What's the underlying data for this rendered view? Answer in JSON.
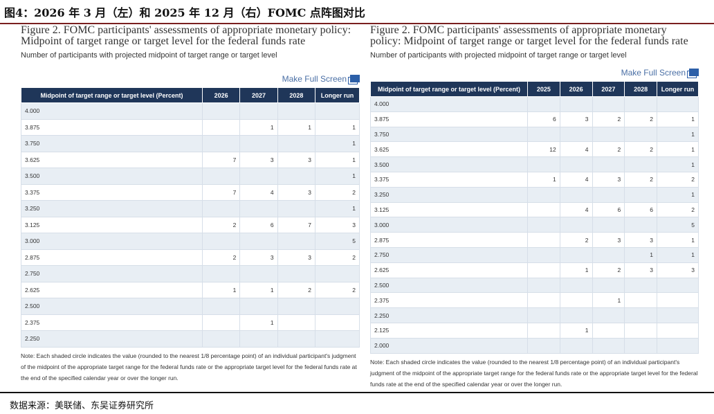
{
  "heading": "图4：2026 年 3 月（左）和 2025 年 12 月（右）FOMC 点阵图对比",
  "source": "数据来源：美联储、东吴证券研究所",
  "left": {
    "title": "Figure 2. FOMC participants' assessments of appropriate monetary policy: Midpoint of target range or target level for the federal funds rate",
    "subtitle": "Number of participants with projected midpoint of target range or target level",
    "full_screen": "Make Full Screen",
    "headers": [
      "Midpoint of target range or target level (Percent)",
      "2026",
      "2027",
      "2028",
      "Longer run"
    ],
    "rows": [
      [
        "4.000",
        "",
        "",
        "",
        ""
      ],
      [
        "3.875",
        "",
        "1",
        "1",
        "1"
      ],
      [
        "3.750",
        "",
        "",
        "",
        "1"
      ],
      [
        "3.625",
        "7",
        "3",
        "3",
        "1"
      ],
      [
        "3.500",
        "",
        "",
        "",
        "1"
      ],
      [
        "3.375",
        "7",
        "4",
        "3",
        "2"
      ],
      [
        "3.250",
        "",
        "",
        "",
        "1"
      ],
      [
        "3.125",
        "2",
        "6",
        "7",
        "3"
      ],
      [
        "3.000",
        "",
        "",
        "",
        "5"
      ],
      [
        "2.875",
        "2",
        "3",
        "3",
        "2"
      ],
      [
        "2.750",
        "",
        "",
        "",
        ""
      ],
      [
        "2.625",
        "1",
        "1",
        "2",
        "2"
      ],
      [
        "2.500",
        "",
        "",
        "",
        ""
      ],
      [
        "2.375",
        "",
        "1",
        "",
        ""
      ],
      [
        "2.250",
        "",
        "",
        "",
        ""
      ]
    ],
    "note": "Note: Each shaded circle indicates the value (rounded to the nearest 1/8 percentage point) of an individual participant's judgment of the midpoint of the appropriate target range for the federal funds rate or the appropriate target level for the federal funds rate at the end of the specified calendar year or over the longer run."
  },
  "right": {
    "title": "Figure 2. FOMC participants' assessments of appropriate monetary policy: Midpoint of target range or target level for the federal funds rate",
    "subtitle": "Number of participants with projected midpoint of target range or target level",
    "full_screen": "Make Full Screen",
    "headers": [
      "Midpoint of target range or target level (Percent)",
      "2025",
      "2026",
      "2027",
      "2028",
      "Longer run"
    ],
    "rows": [
      [
        "4.000",
        "",
        "",
        "",
        "",
        ""
      ],
      [
        "3.875",
        "6",
        "3",
        "2",
        "2",
        "1"
      ],
      [
        "3.750",
        "",
        "",
        "",
        "",
        "1"
      ],
      [
        "3.625",
        "12",
        "4",
        "2",
        "2",
        "1"
      ],
      [
        "3.500",
        "",
        "",
        "",
        "",
        "1"
      ],
      [
        "3.375",
        "1",
        "4",
        "3",
        "2",
        "2"
      ],
      [
        "3.250",
        "",
        "",
        "",
        "",
        "1"
      ],
      [
        "3.125",
        "",
        "4",
        "6",
        "6",
        "2"
      ],
      [
        "3.000",
        "",
        "",
        "",
        "",
        "5"
      ],
      [
        "2.875",
        "",
        "2",
        "3",
        "3",
        "1"
      ],
      [
        "2.750",
        "",
        "",
        "",
        "1",
        "1"
      ],
      [
        "2.625",
        "",
        "1",
        "2",
        "3",
        "3"
      ],
      [
        "2.500",
        "",
        "",
        "",
        "",
        ""
      ],
      [
        "2.375",
        "",
        "",
        "1",
        "",
        ""
      ],
      [
        "2.250",
        "",
        "",
        "",
        "",
        ""
      ],
      [
        "2.125",
        "",
        "1",
        "",
        "",
        ""
      ],
      [
        "2.000",
        "",
        "",
        "",
        "",
        ""
      ]
    ],
    "note": "Note: Each shaded circle indicates the value (rounded to the nearest 1/8 percentage point) of an individual participant's judgment of the midpoint of the appropriate target range for the federal funds rate or the appropriate target level for the federal funds rate at the end of the specified calendar year or over the longer run."
  }
}
